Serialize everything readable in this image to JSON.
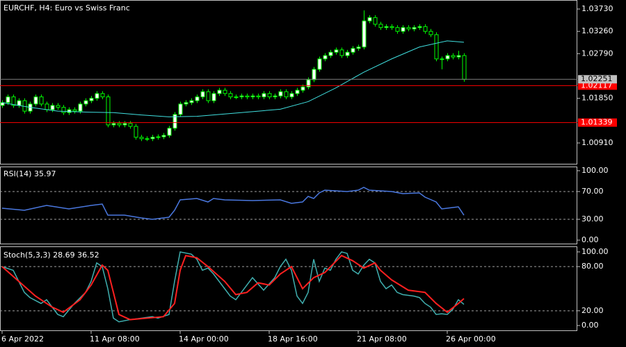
{
  "chart_data": [
    {
      "type": "candlestick",
      "title": "EURCHF, H4:  Euro vs Swiss Franc",
      "xlim": [
        -0.375,
        103.375
      ],
      "ylim": [
        1.00457,
        1.0392
      ],
      "yticks": [
        {
          "value": 1.0373,
          "label": "1.03730"
        },
        {
          "value": 1.0326,
          "label": "1.03260"
        },
        {
          "value": 1.0279,
          "label": "1.02790"
        },
        {
          "value": 1.0185,
          "label": "1.01850"
        },
        {
          "value": 1.0091,
          "label": "1.00910"
        }
      ],
      "up_color": "#ffffff",
      "down_color": "#000000",
      "wick_color": "#00ff00",
      "candles": [
        [
          1.017,
          1.0181,
          1.0165,
          1.0176
        ],
        [
          1.0176,
          1.0193,
          1.0171,
          1.0188
        ],
        [
          1.0188,
          1.0193,
          1.0165,
          1.017
        ],
        [
          1.017,
          1.0185,
          1.0165,
          1.018
        ],
        [
          1.018,
          1.0185,
          1.0153,
          1.0158
        ],
        [
          1.0158,
          1.0178,
          1.0153,
          1.0173
        ],
        [
          1.0173,
          1.0193,
          1.0168,
          1.0188
        ],
        [
          1.0188,
          1.0193,
          1.0168,
          1.0173
        ],
        [
          1.0173,
          1.0178,
          1.0156,
          1.0161
        ],
        [
          1.0161,
          1.0175,
          1.0156,
          1.017
        ],
        [
          1.017,
          1.0175,
          1.0161,
          1.0166
        ],
        [
          1.0166,
          1.0171,
          1.015,
          1.0155
        ],
        [
          1.0155,
          1.0166,
          1.015,
          1.0161
        ],
        [
          1.0161,
          1.0166,
          1.0153,
          1.0158
        ],
        [
          1.0158,
          1.0178,
          1.0153,
          1.0173
        ],
        [
          1.0173,
          1.0185,
          1.0168,
          1.018
        ],
        [
          1.018,
          1.019,
          1.0175,
          1.0185
        ],
        [
          1.0185,
          1.02,
          1.018,
          1.0195
        ],
        [
          1.0195,
          1.02,
          1.0183,
          1.0188
        ],
        [
          1.0188,
          1.0193,
          1.0124,
          1.0129
        ],
        [
          1.0129,
          1.0137,
          1.0124,
          1.0132
        ],
        [
          1.0132,
          1.0137,
          1.0124,
          1.0129
        ],
        [
          1.0129,
          1.0137,
          1.0124,
          1.0132
        ],
        [
          1.0132,
          1.0137,
          1.0121,
          1.0126
        ],
        [
          1.0126,
          1.0131,
          1.0098,
          1.0103
        ],
        [
          1.0103,
          1.0108,
          1.0095,
          1.01
        ],
        [
          1.01,
          1.0105,
          1.0095,
          1.01
        ],
        [
          1.01,
          1.0108,
          1.0095,
          1.0103
        ],
        [
          1.0103,
          1.0109,
          1.0098,
          1.0104
        ],
        [
          1.0104,
          1.0112,
          1.0099,
          1.0107
        ],
        [
          1.0107,
          1.0127,
          1.0102,
          1.0122
        ],
        [
          1.0122,
          1.0156,
          1.0117,
          1.0151
        ],
        [
          1.0151,
          1.0178,
          1.0146,
          1.0173
        ],
        [
          1.0173,
          1.0181,
          1.0168,
          1.0176
        ],
        [
          1.0176,
          1.0185,
          1.0171,
          1.018
        ],
        [
          1.018,
          1.0193,
          1.0175,
          1.0188
        ],
        [
          1.0188,
          1.0204,
          1.0183,
          1.0199
        ],
        [
          1.0199,
          1.0204,
          1.0175,
          1.018
        ],
        [
          1.018,
          1.02,
          1.0175,
          1.0195
        ],
        [
          1.0195,
          1.0207,
          1.019,
          1.0202
        ],
        [
          1.0202,
          1.0207,
          1.019,
          1.0195
        ],
        [
          1.0195,
          1.02,
          1.0183,
          1.0188
        ],
        [
          1.0188,
          1.0193,
          1.0183,
          1.0188
        ],
        [
          1.0188,
          1.0195,
          1.0183,
          1.019
        ],
        [
          1.019,
          1.0195,
          1.0183,
          1.0188
        ],
        [
          1.0188,
          1.0195,
          1.0183,
          1.019
        ],
        [
          1.019,
          1.0195,
          1.0183,
          1.0188
        ],
        [
          1.0188,
          1.02,
          1.0183,
          1.0195
        ],
        [
          1.0195,
          1.02,
          1.0183,
          1.0188
        ],
        [
          1.0188,
          1.0195,
          1.0183,
          1.019
        ],
        [
          1.019,
          1.0204,
          1.0185,
          1.0199
        ],
        [
          1.0199,
          1.0204,
          1.0183,
          1.0188
        ],
        [
          1.0188,
          1.02,
          1.0183,
          1.0195
        ],
        [
          1.0195,
          1.0207,
          1.019,
          1.0202
        ],
        [
          1.0202,
          1.0214,
          1.0197,
          1.0209
        ],
        [
          1.0209,
          1.0229,
          1.0204,
          1.0224
        ],
        [
          1.0224,
          1.0251,
          1.0219,
          1.0246
        ],
        [
          1.0246,
          1.0273,
          1.0241,
          1.0268
        ],
        [
          1.0268,
          1.028,
          1.0263,
          1.0275
        ],
        [
          1.0275,
          1.0287,
          1.027,
          1.0282
        ],
        [
          1.0282,
          1.0292,
          1.0277,
          1.0287
        ],
        [
          1.0287,
          1.0292,
          1.027,
          1.0275
        ],
        [
          1.0275,
          1.0287,
          1.027,
          1.0282
        ],
        [
          1.0282,
          1.0295,
          1.0277,
          1.029
        ],
        [
          1.029,
          1.0298,
          1.0285,
          1.0293
        ],
        [
          1.0293,
          1.037,
          1.0288,
          1.0348
        ],
        [
          1.0348,
          1.036,
          1.0343,
          1.0355
        ],
        [
          1.0355,
          1.036,
          1.0336,
          1.0341
        ],
        [
          1.0341,
          1.0346,
          1.0329,
          1.0334
        ],
        [
          1.0334,
          1.0341,
          1.0329,
          1.0336
        ],
        [
          1.0336,
          1.0341,
          1.0329,
          1.0334
        ],
        [
          1.0334,
          1.0339,
          1.0321,
          1.0326
        ],
        [
          1.0326,
          1.0339,
          1.0321,
          1.0334
        ],
        [
          1.0334,
          1.0339,
          1.0326,
          1.0331
        ],
        [
          1.0331,
          1.0339,
          1.0326,
          1.0334
        ],
        [
          1.0334,
          1.0341,
          1.0329,
          1.0336
        ],
        [
          1.0336,
          1.0341,
          1.0321,
          1.0326
        ],
        [
          1.0326,
          1.0331,
          1.0314,
          1.0319
        ],
        [
          1.0319,
          1.0324,
          1.0263,
          1.0268
        ],
        [
          1.0268,
          1.0273,
          1.0246,
          1.0268
        ],
        [
          1.0268,
          1.028,
          1.0263,
          1.0275
        ],
        [
          1.0275,
          1.028,
          1.0267,
          1.0272
        ],
        [
          1.0272,
          1.0285,
          1.0267,
          1.0275
        ],
        [
          1.0275,
          1.028,
          1.022,
          1.0225
        ]
      ],
      "ma": {
        "color": "#40e0e0",
        "x": [
          0,
          5,
          10,
          15,
          20,
          25,
          30,
          35,
          40,
          45,
          50,
          55,
          60,
          65,
          70,
          75,
          80,
          83
        ],
        "values": [
          1.0176,
          1.0166,
          1.0158,
          1.0156,
          1.0155,
          1.015,
          1.0146,
          1.0147,
          1.0152,
          1.0157,
          1.0162,
          1.0178,
          1.0207,
          1.024,
          1.0268,
          1.0293,
          1.0306,
          1.0303
        ]
      },
      "hlines": [
        1.02117,
        1.01339
      ],
      "hline_color": "#ff0000",
      "current": 1.02251
    },
    {
      "type": "line",
      "title": "RSI(14) 35.97",
      "ylim": [
        -6,
        106
      ],
      "yticks": [
        {
          "value": 100,
          "label": "100.00"
        },
        {
          "value": 70,
          "label": "70.00"
        },
        {
          "value": 30,
          "label": "30.00"
        },
        {
          "value": 0,
          "label": "0.00"
        }
      ],
      "levels": [
        70,
        30
      ],
      "series": [
        {
          "color": "#4a78e0",
          "x": [
            0,
            4,
            8,
            12,
            16,
            18,
            19,
            22,
            25,
            27,
            30,
            31,
            32,
            35,
            37,
            38,
            40,
            45,
            50,
            52,
            54,
            55,
            56,
            57,
            58,
            62,
            64,
            65,
            66,
            70,
            72,
            75,
            76,
            78,
            79,
            80,
            81,
            82,
            83
          ],
          "values": [
            46,
            43,
            50,
            45,
            50,
            52,
            36,
            36,
            32,
            30,
            33,
            43,
            58,
            60,
            55,
            60,
            58,
            57,
            58,
            53,
            55,
            63,
            60,
            68,
            72,
            70,
            72,
            76,
            72,
            70,
            67,
            68,
            62,
            55,
            45,
            46,
            47,
            48,
            35.97
          ]
        }
      ]
    },
    {
      "type": "line",
      "title": "Stoch(5,3,3) 28.69 36.52",
      "ylim": [
        -7.5,
        107.5
      ],
      "yticks": [
        {
          "value": 100,
          "label": "100.00"
        },
        {
          "value": 80,
          "label": "80.00"
        },
        {
          "value": 20,
          "label": "20.00"
        },
        {
          "value": 0,
          "label": "0.00"
        }
      ],
      "levels": [
        80,
        20
      ],
      "xticks": [
        {
          "value": 0,
          "label": "6 Apr 2022"
        },
        {
          "value": 16,
          "label": "11 Apr 08:00"
        },
        {
          "value": 32,
          "label": "14 Apr 00:00"
        },
        {
          "value": 48,
          "label": "18 Apr 16:00"
        },
        {
          "value": 64,
          "label": "21 Apr 08:00"
        },
        {
          "value": 80,
          "label": "26 Apr 00:00"
        }
      ],
      "series": [
        {
          "color": "#40b0b0",
          "x": [
            0,
            2,
            4,
            5,
            7,
            8,
            10,
            11,
            13,
            15,
            16,
            17,
            18,
            19,
            20,
            21,
            23,
            25,
            27,
            28,
            30,
            31,
            32,
            34,
            35,
            36,
            37,
            38,
            40,
            41,
            42,
            44,
            45,
            47,
            49,
            50,
            51,
            52,
            53,
            54,
            55,
            56,
            57,
            58,
            59,
            60,
            61,
            62,
            63,
            64,
            65,
            66,
            67,
            68,
            69,
            70,
            71,
            72,
            74,
            75,
            76,
            77,
            78,
            79,
            80,
            81,
            82,
            83
          ],
          "values": [
            80,
            75,
            45,
            38,
            30,
            35,
            15,
            12,
            30,
            45,
            60,
            85,
            80,
            50,
            10,
            5,
            8,
            10,
            12,
            10,
            15,
            60,
            100,
            97,
            90,
            75,
            78,
            70,
            50,
            40,
            35,
            55,
            65,
            48,
            65,
            80,
            90,
            75,
            40,
            30,
            45,
            90,
            60,
            78,
            75,
            90,
            100,
            98,
            75,
            70,
            82,
            90,
            85,
            60,
            50,
            55,
            45,
            42,
            40,
            38,
            30,
            25,
            15,
            16,
            15,
            22,
            35,
            28.69
          ]
        },
        {
          "color": "#ff2020",
          "x": [
            0,
            3,
            6,
            9,
            11,
            14,
            16,
            18,
            19,
            20,
            21,
            23,
            26,
            29,
            31,
            32,
            33,
            35,
            37,
            40,
            42,
            44,
            46,
            48,
            50,
            52,
            54,
            56,
            58,
            61,
            63,
            65,
            67,
            68,
            70,
            73,
            76,
            78,
            80,
            82,
            83
          ],
          "values": [
            80,
            60,
            40,
            25,
            18,
            35,
            55,
            82,
            75,
            45,
            15,
            8,
            10,
            12,
            30,
            75,
            95,
            92,
            80,
            60,
            42,
            45,
            58,
            55,
            70,
            80,
            50,
            65,
            72,
            95,
            88,
            78,
            85,
            75,
            62,
            48,
            45,
            30,
            18,
            30,
            36.52
          ]
        }
      ]
    }
  ]
}
